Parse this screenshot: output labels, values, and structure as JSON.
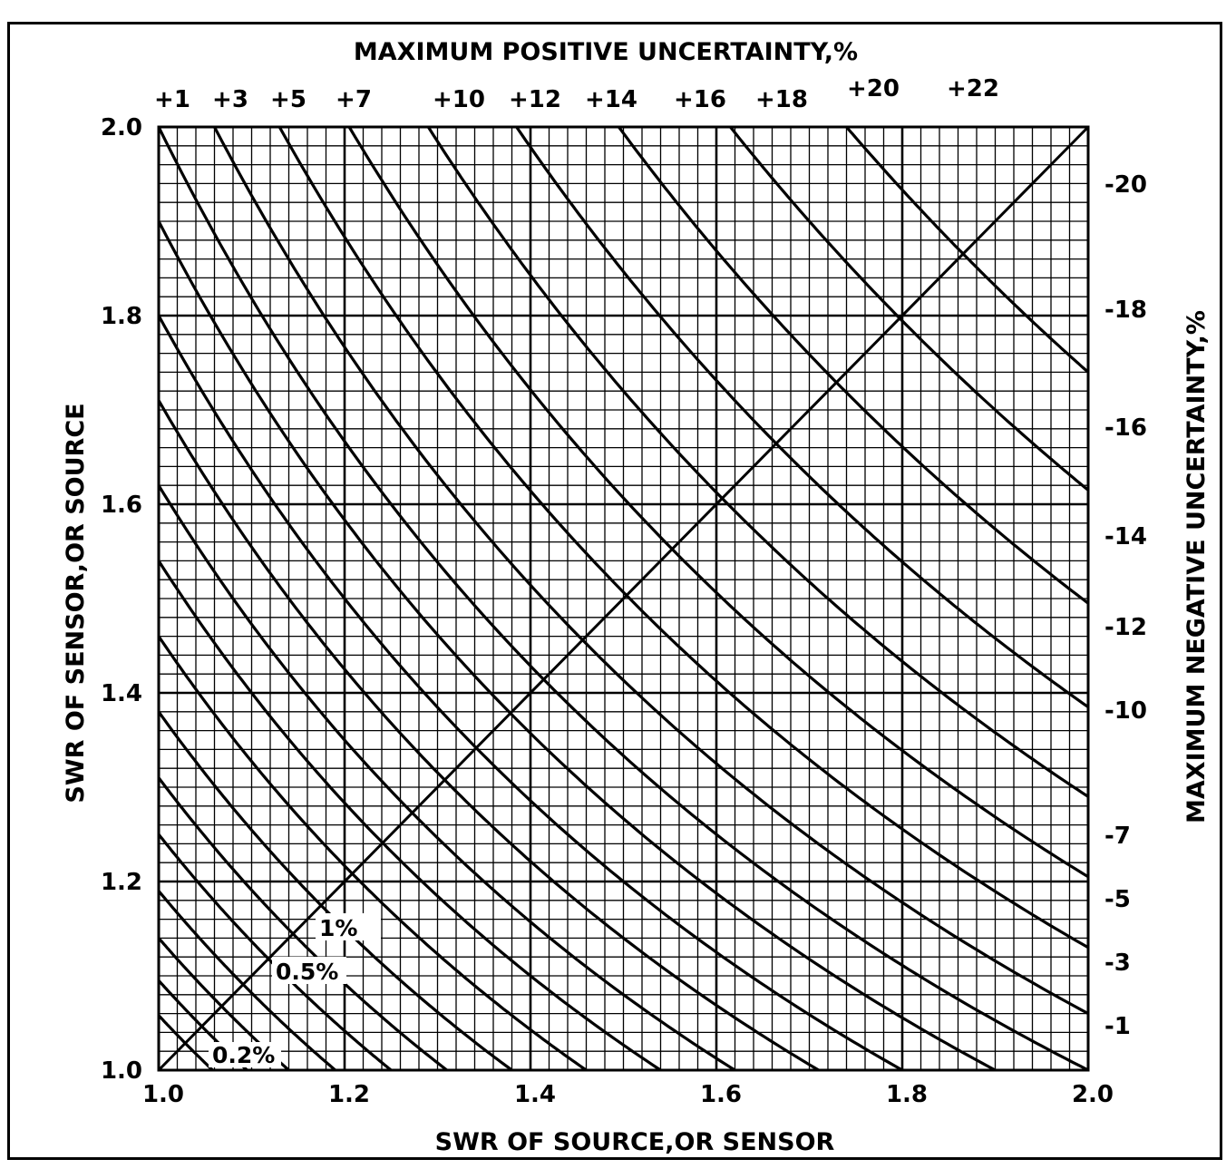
{
  "chart_data": {
    "type": "line",
    "title": "MAXIMUM POSITIVE UNCERTAINTY,%",
    "xlabel": "SWR OF SOURCE,OR SENSOR",
    "ylabel": "SWR OF SENSOR,OR SOURCE",
    "y2label": "MAXIMUM NEGATIVE UNCERTAINTY,%",
    "xlim": [
      1.0,
      2.0
    ],
    "ylim": [
      1.0,
      2.0
    ],
    "grid": true,
    "grid_step": 0.02,
    "x_ticks": [
      "1.0",
      "1.2",
      "1.4",
      "1.6",
      "1.8",
      "2.0"
    ],
    "y_ticks": [
      "1.0",
      "1.2",
      "1.4",
      "1.6",
      "1.8",
      "2.0"
    ],
    "top_ticks": [
      "+1",
      "+3",
      "+5",
      "+7",
      "+10",
      "+12",
      "+14",
      "+16",
      "+18",
      "+20",
      "+22"
    ],
    "right_ticks": [
      "-20",
      "-18",
      "-16",
      "-14",
      "-12",
      "-10",
      "-7",
      "-5",
      "-3",
      "-1"
    ],
    "annotations": [
      "1%",
      "0.5%",
      "0.2%"
    ],
    "curve_products": [
      1.058,
      1.095,
      1.14,
      1.19,
      1.25,
      1.31,
      1.38,
      1.46,
      1.54,
      1.62,
      1.71,
      1.8,
      1.9,
      2.0,
      2.12,
      2.26,
      2.41,
      2.58,
      2.77,
      2.99,
      3.23,
      3.48
    ],
    "diagonal": {
      "x": [
        1.0,
        2.0
      ],
      "y": [
        1.0,
        2.0
      ]
    }
  }
}
